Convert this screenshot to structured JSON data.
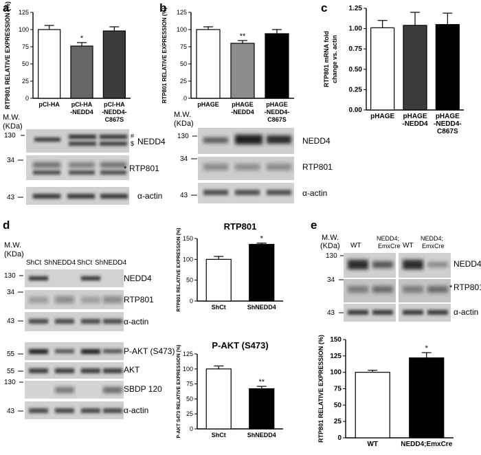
{
  "colors": {
    "white_bar": "#ffffff",
    "dark_grey": "#666666",
    "mid_grey": "#8c8c8c",
    "darker_grey": "#3c3c3c",
    "black": "#000000",
    "axis": "#000000",
    "blot_bg": "#c8c8c8"
  },
  "panel_letters": {
    "a": "a",
    "b": "b",
    "c": "c",
    "d": "d",
    "e": "e"
  },
  "mw_labels": {
    "a": {
      "title": "M.W.",
      "unit": "(KDa)",
      "marks": [
        "130",
        "34",
        "43"
      ]
    },
    "b": {
      "title": "M.W.",
      "unit": "(KDa)",
      "marks": [
        "130",
        "34",
        "43"
      ]
    },
    "d": {
      "title": "M.W.",
      "unit": "(KDa)",
      "marks": [
        "130",
        "34",
        "43",
        "55",
        "55",
        "130",
        "43"
      ]
    },
    "e": {
      "title": "M.W.",
      "unit": "(KDa)",
      "marks": [
        "130",
        "34",
        "43"
      ]
    }
  },
  "blots": {
    "a": {
      "bands": [
        "NEDD4",
        "RTP801",
        "α-actin"
      ],
      "annot_hash": "#",
      "annot_dollar": "$",
      "annot_star": "*"
    },
    "b": {
      "bands": [
        "NEDD4",
        "RTP801",
        "α-actin"
      ]
    },
    "d": {
      "lanes": [
        "ShCt",
        "ShNEDD4",
        "ShCt",
        "ShNEDD4"
      ],
      "bands": [
        "NEDD4",
        "RTP801",
        "α-actin",
        "P-AKT (S473)",
        "AKT",
        "SBDP 120",
        "α-actin"
      ]
    },
    "e": {
      "lanes": [
        "WT",
        "NEDD4;\nEmxCre",
        "WT",
        "NEDD4;\nEmxCre"
      ],
      "bands": [
        "NEDD4",
        "RTP801",
        "α-actin"
      ],
      "annot_star": "*"
    }
  },
  "chart_data": [
    {
      "id": "a",
      "type": "bar",
      "categories": [
        "pCI-HA",
        "pCI-HA -NEDD4",
        "pCI-HA -NEDD4- C867S"
      ],
      "category_lines": [
        [
          "pCI-HA"
        ],
        [
          "pCI-HA",
          "-NEDD4"
        ],
        [
          "pCI-HA",
          "-NEDD4-",
          "C867S"
        ]
      ],
      "values": [
        100,
        76,
        98
      ],
      "errors": [
        6,
        5,
        6
      ],
      "colors": [
        "#ffffff",
        "#666666",
        "#3c3c3c"
      ],
      "significance": [
        "",
        "*",
        ""
      ],
      "ylabel": "RTP801 RELATIVE EXPRESSION (%)",
      "ylim": [
        0,
        125
      ],
      "yticks": [
        "0",
        "25",
        "50",
        "75",
        "100",
        "125"
      ],
      "title": ""
    },
    {
      "id": "b",
      "type": "bar",
      "categories": [
        "pHAGE",
        "pHAGE -NEDD4",
        "pHAGE -NEDD4- C867S"
      ],
      "category_lines": [
        [
          "pHAGE"
        ],
        [
          "pHAGE",
          "-NEDD4"
        ],
        [
          "pHAGE",
          "-NEDD4-",
          "C867S"
        ]
      ],
      "values": [
        100,
        80,
        94
      ],
      "errors": [
        4,
        4,
        6
      ],
      "colors": [
        "#ffffff",
        "#8c8c8c",
        "#000000"
      ],
      "significance": [
        "",
        "**",
        ""
      ],
      "ylabel": "RTP801 RELATIVE EXPRESSION (%)",
      "ylim": [
        0,
        125
      ],
      "yticks": [
        "0",
        "25",
        "50",
        "75",
        "100",
        "125"
      ],
      "title": ""
    },
    {
      "id": "c",
      "type": "bar",
      "categories": [
        "pHAGE",
        "pHAGE -NEDD4",
        "pHAGE -NEDD4- C867S"
      ],
      "category_lines": [
        [
          "pHAGE"
        ],
        [
          "pHAGE",
          "-NEDD4"
        ],
        [
          "pHAGE",
          "-NEDD4-",
          "C867S"
        ]
      ],
      "values": [
        1.01,
        1.04,
        1.05
      ],
      "errors": [
        0.09,
        0.16,
        0.14
      ],
      "colors": [
        "#ffffff",
        "#3c3c3c",
        "#000000"
      ],
      "significance": [
        "",
        "",
        ""
      ],
      "ylabel": "RTP801 mRNA fold change vs. actin",
      "ylim": [
        0,
        1.25
      ],
      "yticks": [
        "0.00",
        "0.25",
        "0.50",
        "0.75",
        "1.00",
        "1.25"
      ],
      "title": ""
    },
    {
      "id": "d-rtp801",
      "type": "bar",
      "categories": [
        "ShCt",
        "ShNEDD4"
      ],
      "category_lines": [
        [
          "ShCt"
        ],
        [
          "ShNEDD4"
        ]
      ],
      "values": [
        100,
        136
      ],
      "errors": [
        7,
        3
      ],
      "colors": [
        "#ffffff",
        "#000000"
      ],
      "significance": [
        "",
        "*"
      ],
      "ylabel": "RTP801 RELATIVE EXPRESSION (%)",
      "ylim": [
        0,
        150
      ],
      "yticks": [
        "0",
        "50",
        "100",
        "150"
      ],
      "title": "RTP801"
    },
    {
      "id": "d-pakt",
      "type": "bar",
      "categories": [
        "ShCt",
        "ShNEDD4"
      ],
      "category_lines": [
        [
          "ShCt"
        ],
        [
          "ShNEDD4"
        ]
      ],
      "values": [
        100,
        67
      ],
      "errors": [
        5,
        4
      ],
      "colors": [
        "#ffffff",
        "#000000"
      ],
      "significance": [
        "",
        "**"
      ],
      "ylabel": "P-AKT S473 RELATIVE EXPRESSION (%)",
      "ylim": [
        0,
        125
      ],
      "yticks": [
        "0",
        "25",
        "50",
        "75",
        "100",
        "125"
      ],
      "title": "P-AKT (S473)"
    },
    {
      "id": "e",
      "type": "bar",
      "categories": [
        "WT",
        "NEDD4;EmxCre"
      ],
      "category_lines": [
        [
          "WT"
        ],
        [
          "NEDD4;EmxCre"
        ]
      ],
      "values": [
        100,
        122
      ],
      "errors": [
        3,
        8
      ],
      "colors": [
        "#ffffff",
        "#000000"
      ],
      "significance": [
        "",
        "*"
      ],
      "ylabel": "RTP801 RELATIVE EXPRESSION (%)",
      "ylim": [
        0,
        150
      ],
      "yticks": [
        "0",
        "25",
        "50",
        "75",
        "100",
        "125",
        "150"
      ],
      "title": ""
    }
  ]
}
